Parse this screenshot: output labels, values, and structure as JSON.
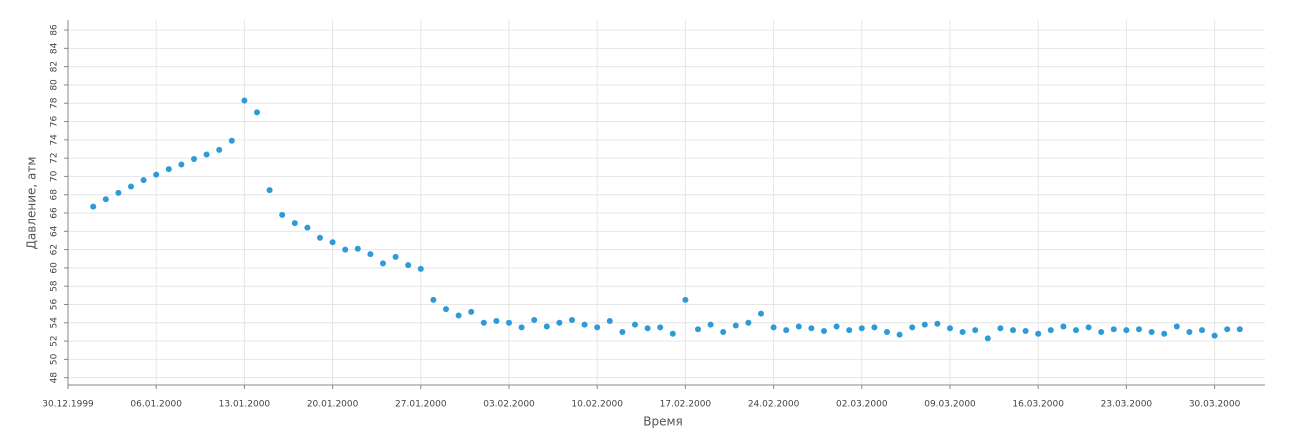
{
  "chart_data": {
    "type": "scatter",
    "xlabel": "Время",
    "ylabel": "Давление, атм",
    "color": "#2f9ad8",
    "grid": true,
    "xlim": [
      "30.12.1999",
      "03.04.2000"
    ],
    "xticks": [
      "30.12.1999",
      "06.01.2000",
      "13.01.2000",
      "20.01.2000",
      "27.01.2000",
      "03.02.2000",
      "10.02.2000",
      "17.02.2000",
      "24.02.2000",
      "02.03.2000",
      "09.03.2000",
      "16.03.2000",
      "23.03.2000",
      "30.03.2000"
    ],
    "ylim": [
      47.2,
      87.1
    ],
    "yticks": [
      48,
      50,
      52,
      54,
      56,
      58,
      60,
      62,
      64,
      66,
      68,
      70,
      72,
      74,
      76,
      78,
      80,
      82,
      84,
      86
    ],
    "x": [
      "01.01.2000",
      "02.01.2000",
      "03.01.2000",
      "04.01.2000",
      "05.01.2000",
      "06.01.2000",
      "07.01.2000",
      "08.01.2000",
      "09.01.2000",
      "10.01.2000",
      "11.01.2000",
      "12.01.2000",
      "13.01.2000",
      "14.01.2000",
      "15.01.2000",
      "16.01.2000",
      "17.01.2000",
      "18.01.2000",
      "19.01.2000",
      "20.01.2000",
      "21.01.2000",
      "22.01.2000",
      "23.01.2000",
      "24.01.2000",
      "25.01.2000",
      "26.01.2000",
      "27.01.2000",
      "28.01.2000",
      "29.01.2000",
      "30.01.2000",
      "31.01.2000",
      "01.02.2000",
      "02.02.2000",
      "03.02.2000",
      "04.02.2000",
      "05.02.2000",
      "06.02.2000",
      "07.02.2000",
      "08.02.2000",
      "09.02.2000",
      "10.02.2000",
      "11.02.2000",
      "12.02.2000",
      "13.02.2000",
      "14.02.2000",
      "15.02.2000",
      "16.02.2000",
      "17.02.2000",
      "18.02.2000",
      "19.02.2000",
      "20.02.2000",
      "21.02.2000",
      "22.02.2000",
      "23.02.2000",
      "24.02.2000",
      "25.02.2000",
      "26.02.2000",
      "27.02.2000",
      "28.02.2000",
      "29.02.2000",
      "01.03.2000",
      "02.03.2000",
      "03.03.2000",
      "04.03.2000",
      "05.03.2000",
      "06.03.2000",
      "07.03.2000",
      "08.03.2000",
      "09.03.2000",
      "10.03.2000",
      "11.03.2000",
      "12.03.2000",
      "13.03.2000",
      "14.03.2000",
      "15.03.2000",
      "16.03.2000",
      "17.03.2000",
      "18.03.2000",
      "19.03.2000",
      "20.03.2000",
      "21.03.2000",
      "22.03.2000",
      "23.03.2000",
      "24.03.2000",
      "25.03.2000",
      "26.03.2000",
      "27.03.2000",
      "28.03.2000",
      "29.03.2000",
      "30.03.2000",
      "31.03.2000",
      "01.04.2000"
    ],
    "values": [
      66.7,
      67.5,
      68.2,
      68.9,
      69.6,
      70.2,
      70.8,
      71.3,
      71.9,
      72.4,
      72.9,
      73.9,
      78.3,
      77.0,
      68.5,
      65.8,
      64.9,
      64.4,
      63.3,
      62.8,
      62.0,
      62.1,
      61.5,
      60.5,
      61.2,
      60.3,
      59.9,
      56.5,
      55.5,
      54.8,
      55.2,
      54.0,
      54.2,
      54.0,
      53.5,
      54.3,
      53.6,
      54.0,
      54.3,
      53.8,
      53.5,
      54.2,
      53.0,
      53.8,
      53.4,
      53.5,
      52.8,
      56.5,
      53.3,
      53.8,
      53.0,
      53.7,
      54.0,
      55.0,
      53.5,
      53.2,
      53.6,
      53.4,
      53.1,
      53.6,
      53.2,
      53.4,
      53.5,
      53.0,
      52.7,
      53.5,
      53.8,
      53.9,
      53.4,
      53.0,
      53.2,
      52.3,
      53.4,
      53.2,
      53.1,
      52.8,
      53.2,
      53.6,
      53.2,
      53.5,
      53.0,
      53.3,
      53.2,
      53.3,
      53.0,
      52.8,
      53.6,
      53.0,
      53.2,
      52.6,
      53.3,
      53.3
    ]
  }
}
